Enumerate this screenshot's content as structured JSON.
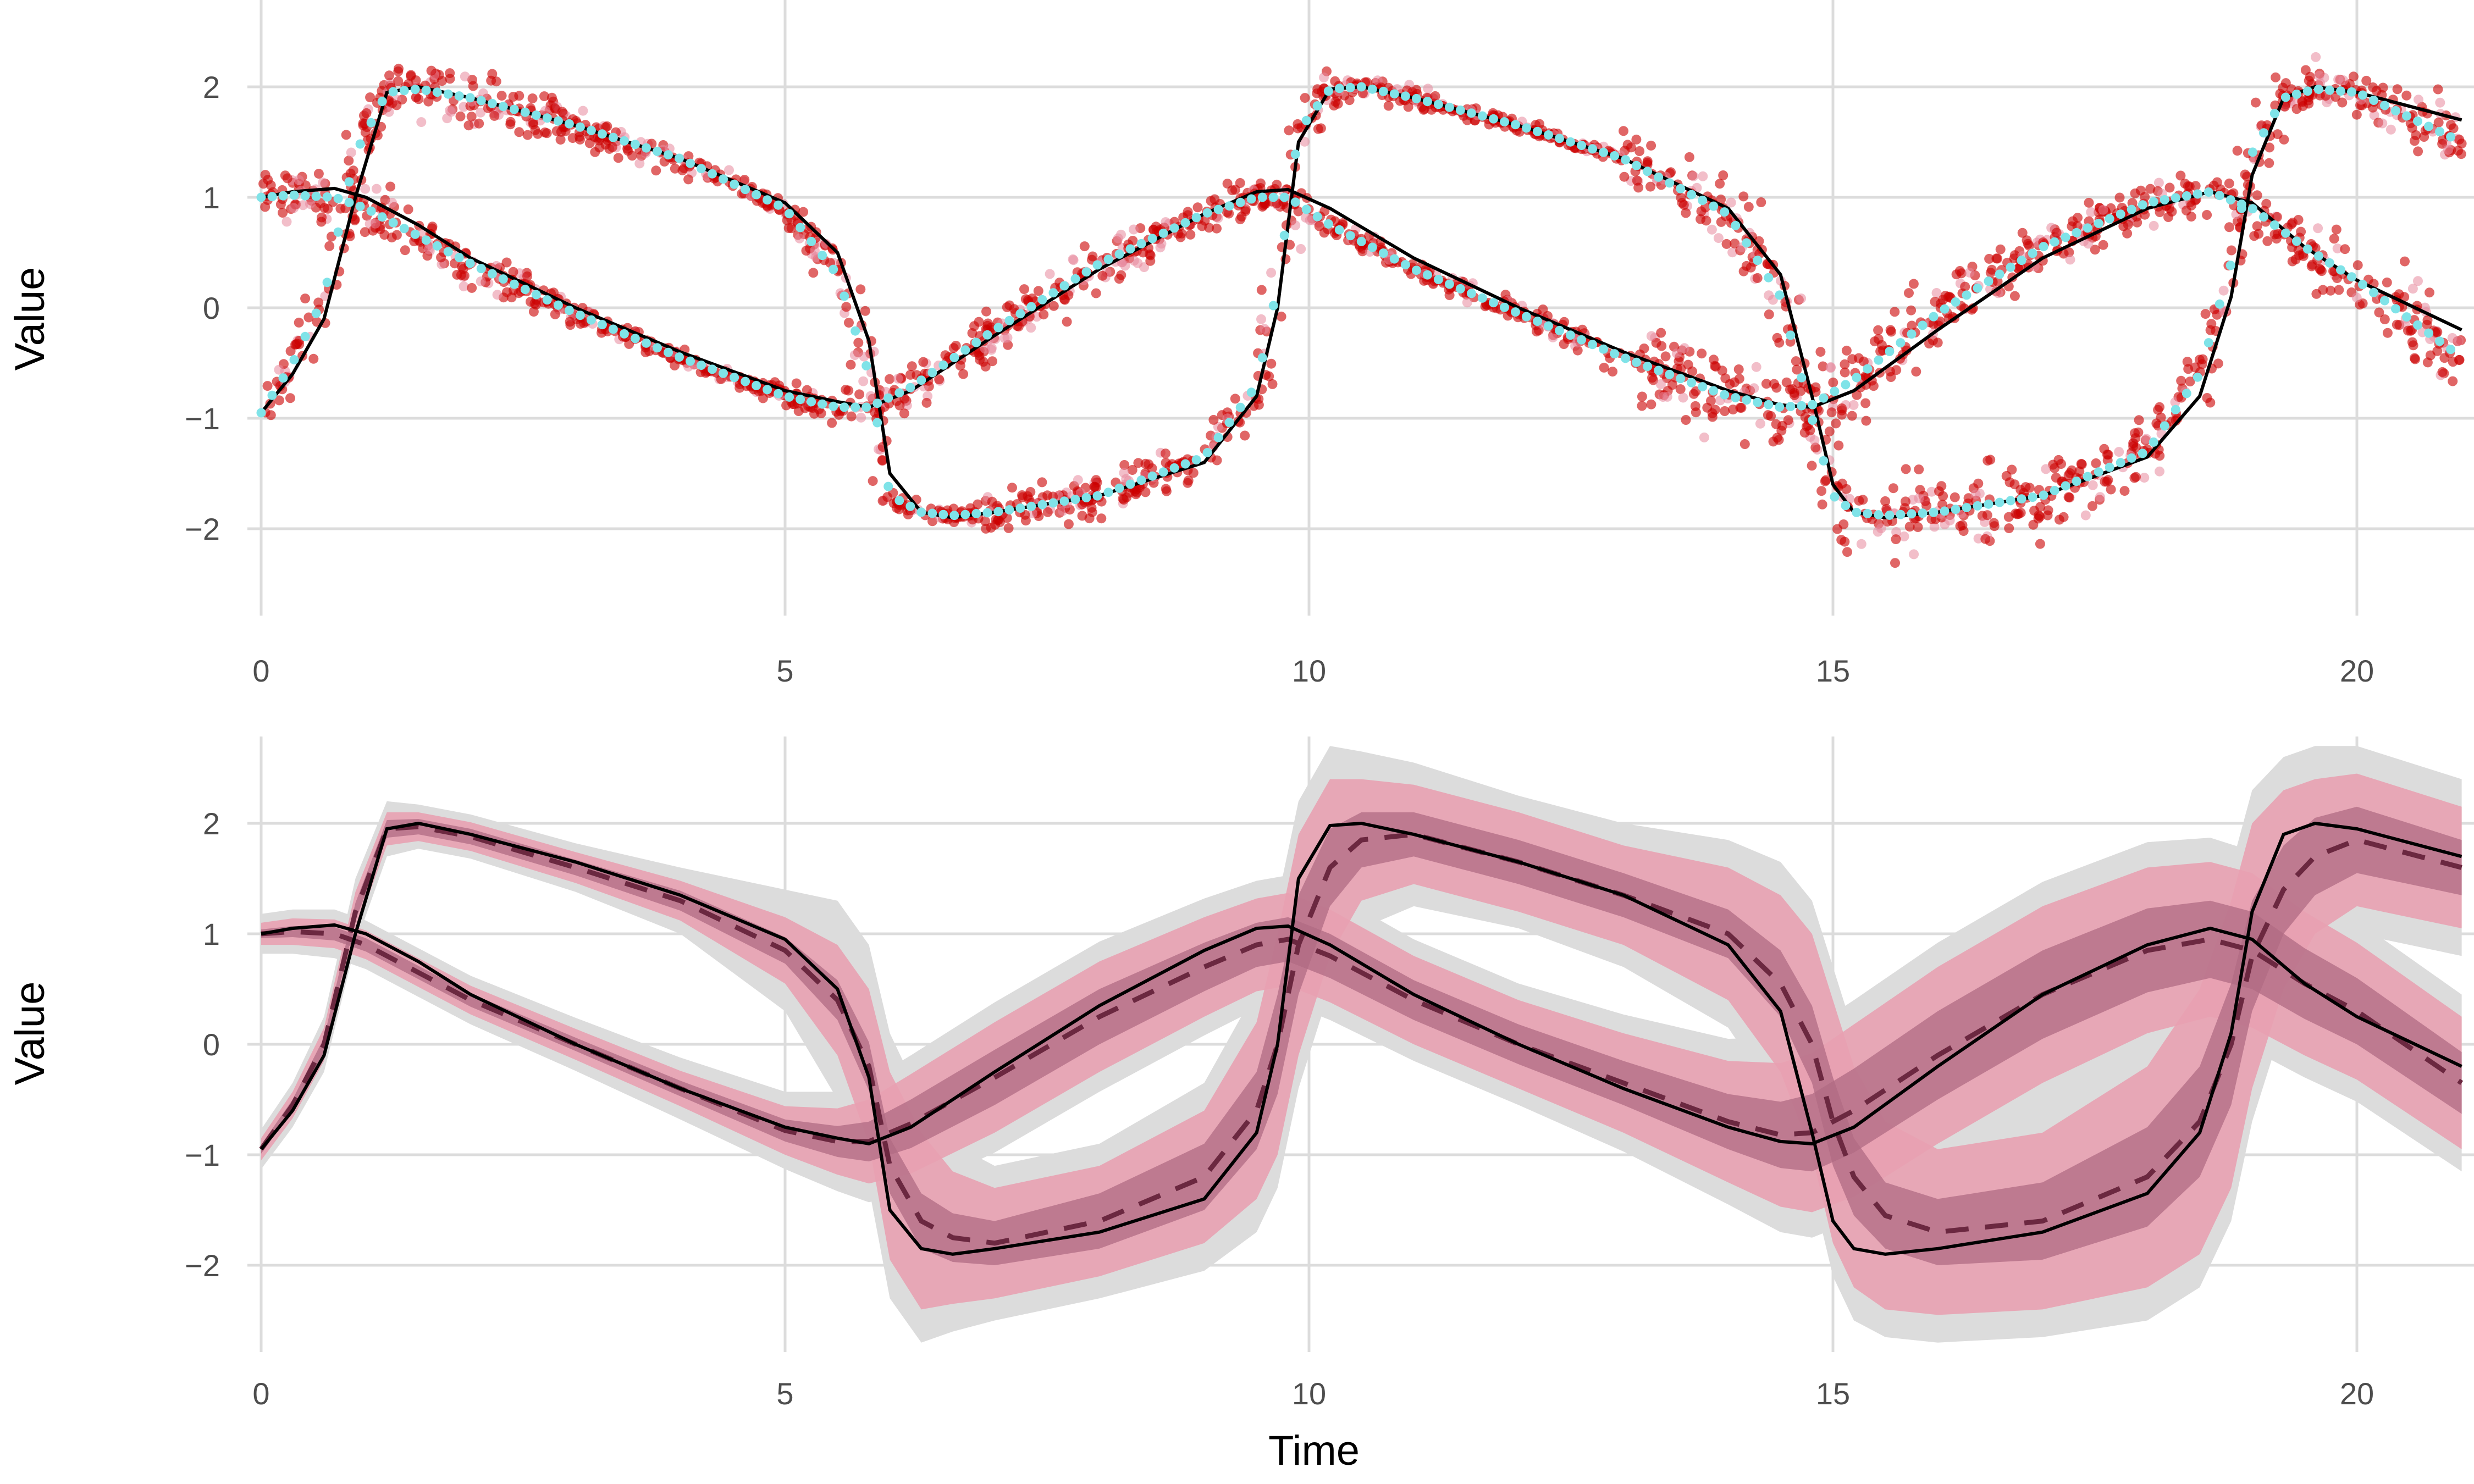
{
  "chart_data": [
    {
      "type": "scatter",
      "title": "",
      "xlabel": "",
      "ylabel": "Value",
      "xlim": [
        0,
        21
      ],
      "ylim": [
        -2.6,
        2.6
      ],
      "x_ticks": [
        0,
        5,
        10,
        15,
        20
      ],
      "x_tick_labels": [
        "0",
        "5",
        "10",
        "15",
        "20"
      ],
      "y_ticks": [
        -2,
        -1,
        0,
        1,
        2
      ],
      "y_tick_labels": [
        "−2",
        "−1",
        "0",
        "1",
        "2"
      ],
      "grid": true,
      "legend": "none",
      "colors": {
        "samples": "#cc0000",
        "samples_light": "#e8899c",
        "observed_points": "#7fe3e8",
        "true_curve": "#000000"
      },
      "series": [
        {
          "role": "true_variable_1",
          "style": "line",
          "x": [
            0,
            0.3,
            0.6,
            0.9,
            1.2,
            1.5,
            2,
            3,
            4,
            5,
            5.5,
            5.8,
            6.0,
            6.3,
            6.6,
            7,
            8,
            9,
            9.5,
            9.7,
            9.9,
            10.2,
            10.5,
            11,
            12,
            13,
            14,
            14.5,
            14.8,
            15.0,
            15.2,
            15.5,
            16,
            17,
            18,
            18.5,
            18.8,
            19.0,
            19.3,
            19.6,
            20,
            21
          ],
          "y": [
            -0.95,
            -0.6,
            -0.1,
            1.0,
            1.95,
            2.0,
            1.9,
            1.65,
            1.35,
            0.95,
            0.5,
            -0.3,
            -1.5,
            -1.85,
            -1.9,
            -1.85,
            -1.7,
            -1.4,
            -0.8,
            0.0,
            1.5,
            1.98,
            2.0,
            1.9,
            1.65,
            1.35,
            0.9,
            0.3,
            -0.8,
            -1.6,
            -1.85,
            -1.9,
            -1.85,
            -1.7,
            -1.35,
            -0.8,
            0.1,
            1.2,
            1.9,
            2.0,
            1.95,
            1.7
          ]
        },
        {
          "role": "true_variable_2",
          "style": "line",
          "x": [
            0,
            0.3,
            0.7,
            1,
            1.5,
            2,
            3,
            4,
            5,
            5.5,
            5.8,
            6.2,
            7,
            8,
            9,
            9.5,
            9.8,
            10.2,
            11,
            12,
            13,
            14,
            14.5,
            14.8,
            15.2,
            16,
            17,
            18,
            18.6,
            19,
            19.5,
            20,
            21
          ],
          "y": [
            1.0,
            1.05,
            1.08,
            1.0,
            0.75,
            0.45,
            0.0,
            -0.4,
            -0.75,
            -0.85,
            -0.9,
            -0.75,
            -0.25,
            0.35,
            0.85,
            1.05,
            1.07,
            0.9,
            0.45,
            0.0,
            -0.4,
            -0.75,
            -0.88,
            -0.9,
            -0.75,
            -0.2,
            0.45,
            0.9,
            1.05,
            0.95,
            0.55,
            0.25,
            -0.2
          ]
        },
        {
          "role": "observed_variable_1",
          "style": "points",
          "x": [
            0,
            0.3,
            0.6,
            0.9,
            1.2,
            1.5,
            2,
            3,
            4,
            5,
            5.5,
            5.8,
            6.0,
            6.3,
            6.6,
            7,
            8,
            9,
            9.5,
            9.7,
            9.9,
            10.2,
            10.5,
            11,
            12,
            13,
            14,
            14.5,
            14.8,
            15.0,
            15.2,
            15.5,
            16,
            17,
            18,
            18.5,
            18.8,
            19.0,
            19.3,
            19.6,
            20,
            21
          ],
          "y": [
            -0.95,
            -0.5,
            0.1,
            1.4,
            1.95,
            1.98,
            1.9,
            1.65,
            1.35,
            0.9,
            0.3,
            -0.6,
            -1.7,
            -1.85,
            -1.88,
            -1.85,
            -1.7,
            -1.35,
            -0.7,
            0.2,
            1.6,
            1.98,
            2.0,
            1.9,
            1.65,
            1.35,
            0.85,
            0.1,
            -1.0,
            -1.7,
            -1.85,
            -1.88,
            -1.85,
            -1.7,
            -1.3,
            -0.6,
            0.4,
            1.4,
            1.9,
            1.98,
            1.95,
            1.5
          ]
        },
        {
          "role": "observed_variable_2",
          "style": "points",
          "x": [
            0,
            0.3,
            0.7,
            1,
            1.5,
            2,
            3,
            4,
            5,
            5.5,
            5.8,
            6.2,
            7,
            8,
            9,
            9.5,
            9.8,
            10.2,
            11,
            12,
            13,
            14,
            14.5,
            14.8,
            15.2,
            16,
            17,
            18,
            18.6,
            19,
            19.5,
            20,
            21
          ],
          "y": [
            1.0,
            1.02,
            1.0,
            0.9,
            0.65,
            0.4,
            -0.05,
            -0.45,
            -0.8,
            -0.9,
            -0.9,
            -0.72,
            -0.2,
            0.4,
            0.85,
            1.0,
            1.0,
            0.75,
            0.35,
            -0.05,
            -0.45,
            -0.8,
            -0.9,
            -0.88,
            -0.65,
            -0.05,
            0.55,
            0.95,
            1.05,
            0.9,
            0.55,
            0.25,
            -0.45
          ]
        }
      ]
    },
    {
      "type": "area",
      "title": "",
      "xlabel": "Time",
      "ylabel": "Value",
      "xlim": [
        0,
        21
      ],
      "ylim": [
        -2.6,
        2.6
      ],
      "x_ticks": [
        0,
        5,
        10,
        15,
        20
      ],
      "x_tick_labels": [
        "0",
        "5",
        "10",
        "15",
        "20"
      ],
      "y_ticks": [
        -2,
        -1,
        0,
        1,
        2
      ],
      "y_tick_labels": [
        "−2",
        "−1",
        "0",
        "1",
        "2"
      ],
      "grid": true,
      "legend": "none",
      "colors": {
        "outer_band": "#dcdcdc",
        "middle_band": "#e8a1b1",
        "inner_band": "#b06b83",
        "median": "#6b2840",
        "true_curve": "#000000"
      },
      "series": [
        {
          "role": "band_variable_1",
          "style": "median_with_bands",
          "x": [
            0,
            0.3,
            0.6,
            0.9,
            1.2,
            1.5,
            2,
            3,
            4,
            5,
            5.5,
            5.8,
            6.0,
            6.3,
            6.6,
            7,
            8,
            9,
            9.5,
            9.7,
            9.9,
            10.2,
            10.5,
            11,
            12,
            13,
            14,
            14.5,
            14.8,
            15.0,
            15.2,
            15.5,
            16,
            17,
            18,
            18.5,
            18.8,
            19.0,
            19.3,
            19.6,
            20,
            21
          ],
          "median": [
            -0.95,
            -0.55,
            0.0,
            1.2,
            1.95,
            1.97,
            1.88,
            1.6,
            1.3,
            0.85,
            0.4,
            -0.2,
            -1.1,
            -1.6,
            -1.75,
            -1.8,
            -1.6,
            -1.2,
            -0.6,
            0.0,
            0.9,
            1.6,
            1.85,
            1.9,
            1.65,
            1.35,
            1.0,
            0.55,
            0.0,
            -0.7,
            -1.2,
            -1.55,
            -1.7,
            -1.6,
            -1.2,
            -0.7,
            0.0,
            0.8,
            1.4,
            1.7,
            1.85,
            1.6
          ],
          "inner_half_width": [
            0.04,
            0.05,
            0.06,
            0.08,
            0.08,
            0.07,
            0.07,
            0.07,
            0.09,
            0.12,
            0.18,
            0.22,
            0.25,
            0.25,
            0.22,
            0.2,
            0.25,
            0.3,
            0.35,
            0.45,
            0.45,
            0.35,
            0.25,
            0.2,
            0.2,
            0.2,
            0.22,
            0.3,
            0.35,
            0.4,
            0.35,
            0.3,
            0.3,
            0.35,
            0.45,
            0.5,
            0.55,
            0.5,
            0.4,
            0.35,
            0.3,
            0.25
          ],
          "middle_half_width": [
            0.1,
            0.12,
            0.15,
            0.18,
            0.15,
            0.13,
            0.13,
            0.14,
            0.18,
            0.3,
            0.5,
            0.7,
            0.85,
            0.8,
            0.6,
            0.5,
            0.5,
            0.6,
            0.8,
            1.0,
            1.0,
            0.8,
            0.55,
            0.45,
            0.45,
            0.45,
            0.6,
            0.8,
            1.0,
            1.1,
            1.0,
            0.85,
            0.75,
            0.8,
            1.0,
            1.2,
            1.3,
            1.2,
            0.9,
            0.7,
            0.6,
            0.55
          ],
          "outer_half_width": [
            0.18,
            0.2,
            0.25,
            0.3,
            0.25,
            0.2,
            0.2,
            0.22,
            0.3,
            0.55,
            0.9,
            1.1,
            1.2,
            1.1,
            0.85,
            0.7,
            0.7,
            0.85,
            1.1,
            1.3,
            1.3,
            1.1,
            0.8,
            0.65,
            0.6,
            0.65,
            0.85,
            1.1,
            1.3,
            1.4,
            1.3,
            1.1,
            1.0,
            1.05,
            1.3,
            1.5,
            1.6,
            1.5,
            1.2,
            1.0,
            0.85,
            0.8
          ]
        },
        {
          "role": "band_variable_2",
          "style": "median_with_bands",
          "x": [
            0,
            0.3,
            0.7,
            1,
            1.5,
            2,
            3,
            4,
            5,
            5.5,
            5.8,
            6.2,
            7,
            8,
            9,
            9.5,
            9.8,
            10.2,
            11,
            12,
            13,
            14,
            14.5,
            14.8,
            15.2,
            16,
            17,
            18,
            18.6,
            19,
            19.5,
            20,
            21
          ],
          "median": [
            1.0,
            1.02,
            1.0,
            0.9,
            0.65,
            0.4,
            0.0,
            -0.4,
            -0.78,
            -0.88,
            -0.88,
            -0.72,
            -0.3,
            0.25,
            0.7,
            0.9,
            0.95,
            0.8,
            0.4,
            0.0,
            -0.35,
            -0.7,
            -0.82,
            -0.8,
            -0.6,
            -0.1,
            0.45,
            0.85,
            0.95,
            0.85,
            0.55,
            0.3,
            -0.35
          ],
          "inner_half_width": [
            0.04,
            0.05,
            0.06,
            0.06,
            0.06,
            0.06,
            0.06,
            0.07,
            0.1,
            0.14,
            0.18,
            0.22,
            0.25,
            0.25,
            0.22,
            0.2,
            0.2,
            0.2,
            0.18,
            0.18,
            0.2,
            0.25,
            0.3,
            0.35,
            0.38,
            0.4,
            0.4,
            0.38,
            0.35,
            0.35,
            0.32,
            0.3,
            0.28
          ],
          "middle_half_width": [
            0.1,
            0.12,
            0.13,
            0.13,
            0.13,
            0.13,
            0.14,
            0.16,
            0.22,
            0.3,
            0.38,
            0.45,
            0.5,
            0.5,
            0.45,
            0.42,
            0.42,
            0.42,
            0.4,
            0.4,
            0.45,
            0.55,
            0.65,
            0.72,
            0.78,
            0.8,
            0.8,
            0.75,
            0.7,
            0.7,
            0.65,
            0.62,
            0.6
          ],
          "outer_half_width": [
            0.18,
            0.2,
            0.22,
            0.22,
            0.22,
            0.22,
            0.24,
            0.28,
            0.35,
            0.45,
            0.55,
            0.62,
            0.68,
            0.68,
            0.62,
            0.58,
            0.58,
            0.58,
            0.55,
            0.55,
            0.62,
            0.75,
            0.88,
            0.95,
            1.0,
            1.02,
            1.02,
            0.98,
            0.92,
            0.9,
            0.85,
            0.82,
            0.8
          ]
        },
        {
          "role": "true_variable_1",
          "style": "line",
          "x": [
            0,
            0.3,
            0.6,
            0.9,
            1.2,
            1.5,
            2,
            3,
            4,
            5,
            5.5,
            5.8,
            6.0,
            6.3,
            6.6,
            7,
            8,
            9,
            9.5,
            9.7,
            9.9,
            10.2,
            10.5,
            11,
            12,
            13,
            14,
            14.5,
            14.8,
            15.0,
            15.2,
            15.5,
            16,
            17,
            18,
            18.5,
            18.8,
            19.0,
            19.3,
            19.6,
            20,
            21
          ],
          "y": [
            -0.95,
            -0.6,
            -0.1,
            1.0,
            1.95,
            2.0,
            1.9,
            1.65,
            1.35,
            0.95,
            0.5,
            -0.3,
            -1.5,
            -1.85,
            -1.9,
            -1.85,
            -1.7,
            -1.4,
            -0.8,
            0.0,
            1.5,
            1.98,
            2.0,
            1.9,
            1.65,
            1.35,
            0.9,
            0.3,
            -0.8,
            -1.6,
            -1.85,
            -1.9,
            -1.85,
            -1.7,
            -1.35,
            -0.8,
            0.1,
            1.2,
            1.9,
            2.0,
            1.95,
            1.7
          ]
        },
        {
          "role": "true_variable_2",
          "style": "line",
          "x": [
            0,
            0.3,
            0.7,
            1,
            1.5,
            2,
            3,
            4,
            5,
            5.5,
            5.8,
            6.2,
            7,
            8,
            9,
            9.5,
            9.8,
            10.2,
            11,
            12,
            13,
            14,
            14.5,
            14.8,
            15.2,
            16,
            17,
            18,
            18.6,
            19,
            19.5,
            20,
            21
          ],
          "y": [
            1.0,
            1.05,
            1.08,
            1.0,
            0.75,
            0.45,
            0.0,
            -0.4,
            -0.75,
            -0.85,
            -0.9,
            -0.75,
            -0.25,
            0.35,
            0.85,
            1.05,
            1.07,
            0.9,
            0.45,
            0.0,
            -0.4,
            -0.75,
            -0.88,
            -0.9,
            -0.75,
            -0.2,
            0.45,
            0.9,
            1.05,
            0.95,
            0.55,
            0.25,
            -0.2
          ]
        }
      ]
    }
  ]
}
